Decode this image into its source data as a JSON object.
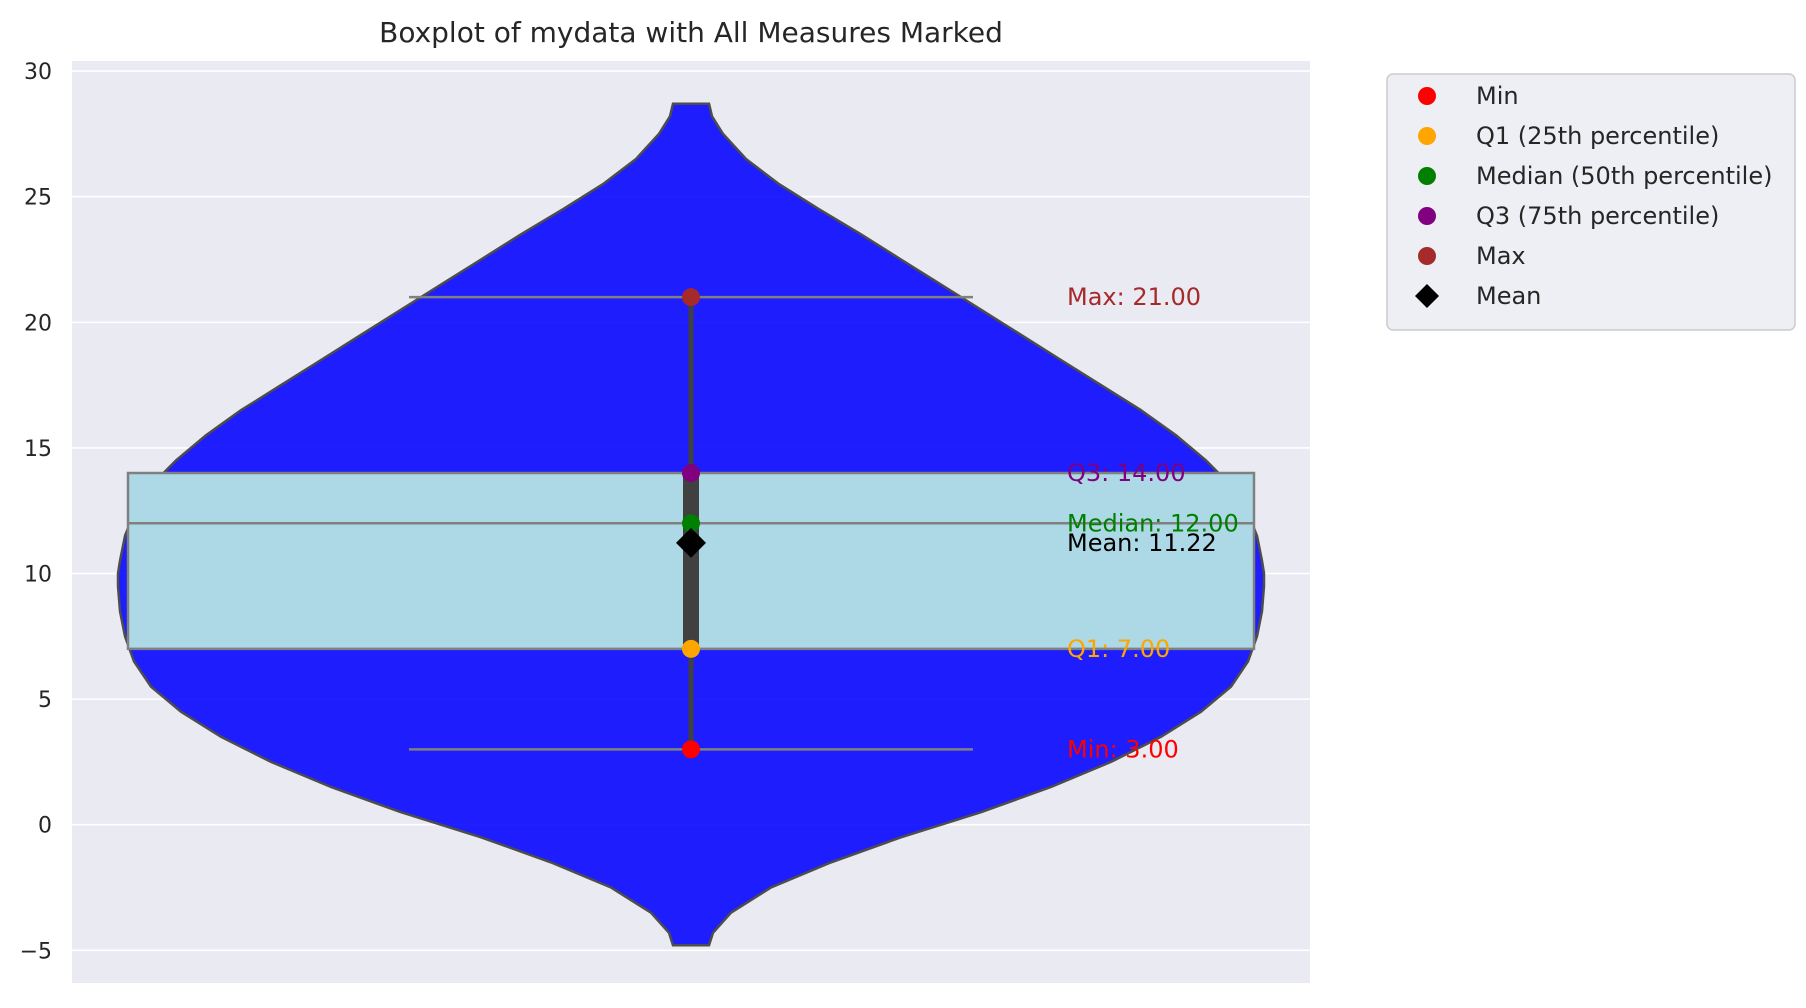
{
  "chart_data": {
    "type": "violin",
    "title": "Boxplot of mydata with All Measures Marked",
    "xlabel": "",
    "ylabel": "",
    "ylim": [
      -6.3,
      30.4
    ],
    "yticks": [
      -5,
      0,
      5,
      10,
      15,
      20,
      25,
      30
    ],
    "grid": true,
    "legend_position": "outside upper right",
    "violin": {
      "range": [
        -4.8,
        28.7
      ],
      "color": "#0000ff",
      "outline_color": "#4d4d4d"
    },
    "box": {
      "q1": 7,
      "median": 12,
      "q3": 14,
      "whisker_low": 3,
      "whisker_high": 21,
      "color": "#add8e6",
      "edge_color": "#808080"
    },
    "inner_box": {
      "q1": 7,
      "q3": 14,
      "whisker_low": 3,
      "whisker_high": 21,
      "color": "#404040"
    },
    "markers": [
      {
        "key": "min",
        "legend": "Min",
        "value": 3,
        "annotation": "Min: 3.00",
        "color": "#ff0000",
        "shape": "circle"
      },
      {
        "key": "q1",
        "legend": "Q1 (25th percentile)",
        "value": 7,
        "annotation": "Q1: 7.00",
        "color": "#ffa500",
        "shape": "circle"
      },
      {
        "key": "median",
        "legend": "Median (50th percentile)",
        "value": 12,
        "annotation": "Median: 12.00",
        "color": "#008000",
        "shape": "circle"
      },
      {
        "key": "q3",
        "legend": "Q3 (75th percentile)",
        "value": 14,
        "annotation": "Q3: 14.00",
        "color": "#800080",
        "shape": "circle"
      },
      {
        "key": "max",
        "legend": "Max",
        "value": 21,
        "annotation": "Max: 21.00",
        "color": "#a52a2a",
        "shape": "circle"
      },
      {
        "key": "mean",
        "legend": "Mean",
        "value": 11.22,
        "annotation": "Mean: 11.22",
        "color": "#000000",
        "shape": "diamond"
      }
    ]
  }
}
